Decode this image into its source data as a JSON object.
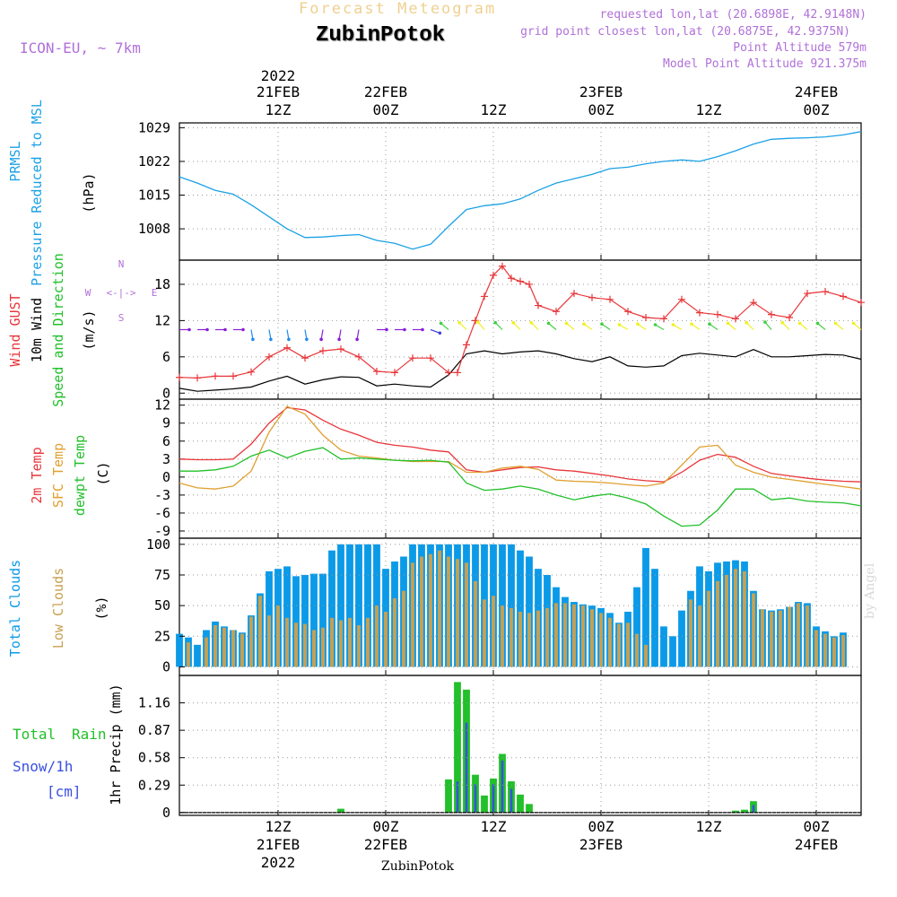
{
  "header": {
    "product": "Forecast Meteogram",
    "station": "ZubinPotok",
    "model": "ICON-EU, ~ 7km",
    "requested": "requested lon,lat (20.6898E, 42.9148N)",
    "closest": "grid point closest lon,lat (20.6875E, 42.9375N)",
    "point_alt": "Point Altitude 579m",
    "model_alt": "Model Point Altitude 921.375m",
    "footer": "ZubinPotok",
    "credit": "by Angel"
  },
  "time_axis": {
    "top_year": "2022",
    "bottom_year": "2022",
    "ticks": [
      {
        "hour": 12,
        "label": "12Z",
        "date": "21FEB"
      },
      {
        "hour": 24,
        "label": "00Z",
        "date": "22FEB"
      },
      {
        "hour": 36,
        "label": "12Z",
        "date": ""
      },
      {
        "hour": 48,
        "label": "00Z",
        "date": "23FEB"
      },
      {
        "hour": 60,
        "label": "12Z",
        "date": ""
      },
      {
        "hour": 72,
        "label": "00Z",
        "date": "24FEB"
      }
    ],
    "range_hours": [
      1,
      77
    ]
  },
  "chart_data": [
    {
      "type": "line",
      "labels": [
        "PRMSL",
        "Pressure Reduced to MSL",
        "(hPa)"
      ],
      "yticks": [
        1008,
        1015,
        1022,
        1029
      ],
      "ylim": [
        1001.5,
        1030
      ],
      "series": [
        {
          "color": "#1ba1e6",
          "x": [
            1,
            3,
            5,
            7,
            9,
            11,
            13,
            15,
            17,
            19,
            21,
            23,
            25,
            27,
            29,
            31,
            33,
            35,
            37,
            39,
            41,
            43,
            45,
            47,
            49,
            51,
            53,
            55,
            57,
            59,
            61,
            63,
            65,
            67,
            69,
            71,
            73,
            75,
            77
          ],
          "y": [
            1018.8,
            1017.5,
            1016.0,
            1015.2,
            1013.0,
            1010.5,
            1008.0,
            1006.2,
            1006.3,
            1006.6,
            1006.8,
            1005.6,
            1005.0,
            1003.8,
            1004.8,
            1008.5,
            1012.0,
            1012.8,
            1013.2,
            1014.2,
            1016.0,
            1017.5,
            1018.4,
            1019.3,
            1020.5,
            1020.8,
            1021.5,
            1022.0,
            1022.3,
            1022.0,
            1023.0,
            1024.2,
            1025.6,
            1026.6,
            1026.8,
            1026.9,
            1027.1,
            1027.5,
            1028.2
          ]
        }
      ]
    },
    {
      "type": "line",
      "labels": [
        "Wind GUST",
        "10m Wind",
        "Speed and Direction",
        "(m/s)"
      ],
      "compass": {
        "n": "N",
        "s": "S",
        "w": "W",
        "e": "E",
        "arrow": "<-|->"
      },
      "yticks": [
        0,
        6,
        12,
        18
      ],
      "ylim": [
        -1,
        22
      ],
      "gust": {
        "color": "#e8363a",
        "x": [
          1,
          3,
          5,
          7,
          9,
          11,
          13,
          15,
          17,
          19,
          21,
          23,
          25,
          27,
          29,
          31,
          32,
          33,
          34,
          35,
          36,
          37,
          38,
          39,
          40,
          41,
          43,
          45,
          47,
          49,
          51,
          53,
          55,
          57,
          59,
          61,
          63,
          65,
          67,
          69,
          71,
          73,
          75,
          77
        ],
        "y": [
          2.6,
          2.5,
          2.8,
          2.8,
          3.5,
          6.0,
          7.5,
          5.8,
          7.0,
          7.3,
          6.0,
          3.6,
          3.4,
          5.8,
          5.8,
          3.4,
          3.4,
          8.0,
          12.0,
          16.0,
          19.5,
          21.0,
          19.0,
          18.5,
          18.0,
          14.5,
          13.5,
          16.5,
          15.8,
          15.5,
          13.5,
          12.5,
          12.3,
          15.5,
          13.3,
          13.0,
          12.3,
          15.0,
          13.0,
          12.5,
          16.5,
          16.8,
          16.0,
          15.0
        ]
      },
      "wind": {
        "color": "#000000",
        "x": [
          1,
          3,
          5,
          7,
          9,
          11,
          13,
          15,
          17,
          19,
          21,
          23,
          25,
          27,
          29,
          31,
          33,
          35,
          37,
          39,
          41,
          43,
          45,
          47,
          49,
          51,
          53,
          55,
          57,
          59,
          61,
          63,
          65,
          67,
          69,
          71,
          73,
          75,
          77
        ],
        "y": [
          0.8,
          0.3,
          0.5,
          0.7,
          1.0,
          2.0,
          2.8,
          1.5,
          2.2,
          2.7,
          2.6,
          1.2,
          1.5,
          1.2,
          1.0,
          3.0,
          6.5,
          7.0,
          6.5,
          6.8,
          7.0,
          6.5,
          5.7,
          5.2,
          6.0,
          4.5,
          4.3,
          4.5,
          6.2,
          6.6,
          6.3,
          6.0,
          7.2,
          6.0,
          6.0,
          6.2,
          6.4,
          6.3,
          5.6
        ]
      },
      "barbs": {
        "colors": [
          "#8a1fd6",
          "#1e8af0",
          "#4040e0",
          "#2fd0e0",
          "#f0f020",
          "#40d040"
        ],
        "dir": [
          270,
          270,
          270,
          270,
          350,
          350,
          350,
          350,
          10,
          10,
          10,
          270,
          270,
          270,
          290,
          130,
          135,
          140,
          135,
          135,
          135,
          130,
          130,
          125,
          125,
          120,
          125,
          120,
          120,
          125,
          125,
          130,
          135,
          140,
          135,
          130,
          130,
          130,
          130
        ]
      }
    },
    {
      "type": "line",
      "labels": [
        "2m Temp",
        "SFC Temp",
        "dewpt Temp",
        "(C)"
      ],
      "yticks": [
        -9,
        -6,
        -3,
        0,
        3,
        6,
        9,
        12
      ],
      "ylim": [
        -10.2,
        13
      ],
      "series": [
        {
          "color": "#e8363a",
          "x": [
            1,
            3,
            5,
            7,
            9,
            11,
            13,
            15,
            17,
            19,
            21,
            23,
            25,
            27,
            29,
            31,
            33,
            35,
            37,
            39,
            41,
            43,
            45,
            47,
            49,
            51,
            53,
            55,
            57,
            59,
            61,
            63,
            65,
            67,
            69,
            71,
            73,
            75,
            77
          ],
          "y": [
            3.0,
            2.9,
            2.9,
            3.0,
            5.5,
            9.0,
            11.6,
            11.2,
            9.5,
            8.0,
            7.0,
            5.8,
            5.3,
            5.0,
            4.5,
            4.2,
            1.2,
            0.8,
            1.2,
            1.6,
            1.7,
            1.2,
            1.0,
            0.6,
            0.2,
            -0.3,
            -0.6,
            -0.8,
            0.8,
            2.8,
            3.8,
            3.3,
            1.8,
            0.6,
            0.2,
            -0.2,
            -0.5,
            -0.7,
            -0.8
          ]
        },
        {
          "color": "#e0a030",
          "x": [
            1,
            3,
            5,
            7,
            9,
            11,
            13,
            15,
            17,
            19,
            21,
            23,
            25,
            27,
            29,
            31,
            33,
            35,
            37,
            39,
            41,
            43,
            45,
            47,
            49,
            51,
            53,
            55,
            57,
            59,
            61,
            63,
            65,
            67,
            69,
            71,
            73,
            75,
            77
          ],
          "y": [
            -1.0,
            -1.8,
            -2.0,
            -1.5,
            1.0,
            7.5,
            11.8,
            10.5,
            7.0,
            4.5,
            3.5,
            3.2,
            2.8,
            2.6,
            2.6,
            2.6,
            0.8,
            0.8,
            1.5,
            1.8,
            1.3,
            -0.5,
            -0.7,
            -0.8,
            -1.0,
            -1.3,
            -1.5,
            -1.0,
            2.0,
            5.0,
            5.3,
            2.0,
            0.8,
            0.0,
            -0.4,
            -0.8,
            -1.2,
            -1.6,
            -2.0
          ]
        },
        {
          "color": "#22c02a",
          "x": [
            1,
            3,
            5,
            7,
            9,
            11,
            13,
            15,
            17,
            19,
            21,
            23,
            25,
            27,
            29,
            31,
            33,
            35,
            37,
            39,
            41,
            43,
            45,
            47,
            49,
            51,
            53,
            55,
            57,
            59,
            61,
            63,
            65,
            67,
            69,
            71,
            73,
            75,
            77
          ],
          "y": [
            1.0,
            1.0,
            1.2,
            1.8,
            3.5,
            4.5,
            3.2,
            4.3,
            4.9,
            3.0,
            3.2,
            3.0,
            2.8,
            2.7,
            2.8,
            2.5,
            -1.0,
            -2.2,
            -2.0,
            -1.5,
            -2.0,
            -3.0,
            -3.8,
            -3.2,
            -2.8,
            -3.5,
            -4.5,
            -6.5,
            -8.2,
            -8.0,
            -5.5,
            -2.0,
            -2.0,
            -3.8,
            -3.5,
            -4.0,
            -4.2,
            -4.3,
            -4.8
          ]
        }
      ]
    },
    {
      "type": "bar",
      "labels": [
        "Total Clouds",
        "Low Clouds",
        "(%)"
      ],
      "yticks": [
        0,
        25,
        50,
        75,
        100
      ],
      "ylim": [
        -7,
        105
      ],
      "x_start": 1,
      "x_step": 1,
      "total": [
        27,
        24,
        18,
        30,
        37,
        33,
        30,
        28,
        42,
        60,
        78,
        80,
        82,
        74,
        75,
        76,
        76,
        95,
        100,
        100,
        100,
        100,
        100,
        80,
        86,
        90,
        100,
        100,
        100,
        100,
        100,
        100,
        100,
        100,
        100,
        100,
        100,
        100,
        95,
        90,
        80,
        75,
        65,
        57,
        53,
        51,
        50,
        48,
        44,
        36,
        45,
        65,
        97,
        80,
        33,
        25,
        46,
        62,
        82,
        78,
        85,
        86,
        87,
        86,
        62,
        47,
        46,
        47,
        49,
        53,
        52,
        33,
        29,
        25,
        28
      ],
      "total_color": "#0a9ae8",
      "low": [
        0,
        20,
        0,
        24,
        34,
        32,
        30,
        27,
        41,
        58,
        42,
        50,
        40,
        36,
        35,
        30,
        32,
        40,
        38,
        40,
        34,
        40,
        50,
        45,
        56,
        62,
        85,
        90,
        92,
        95,
        90,
        88,
        85,
        70,
        55,
        58,
        50,
        48,
        45,
        44,
        46,
        48,
        52,
        52,
        51,
        50,
        47,
        44,
        40,
        35,
        36,
        27,
        18,
        0,
        0,
        0,
        0,
        55,
        50,
        62,
        70,
        75,
        80,
        78,
        60,
        47,
        45,
        46,
        49,
        52,
        50,
        30,
        27,
        24,
        26
      ],
      "low_color": "#c8a050"
    },
    {
      "type": "bar",
      "labels": [
        "Total",
        "Rain",
        "Snow/1h",
        "[cm]",
        "1hr Precip (mm)"
      ],
      "yticks": [
        0,
        0.29,
        0.58,
        0.87,
        1.16
      ],
      "tick_labels": [
        "0",
        "0.29",
        "0.58",
        "0.87",
        "1.16"
      ],
      "ylim": [
        -0.03,
        1.45
      ],
      "x_start": 1,
      "x_step": 1,
      "total": [
        0,
        0,
        0,
        0,
        0,
        0,
        0,
        0,
        0,
        0,
        0,
        0,
        0,
        0,
        0,
        0,
        0,
        0,
        0.04,
        0,
        0,
        0,
        0,
        0,
        0,
        0,
        0,
        0,
        0,
        0,
        0.35,
        1.38,
        1.3,
        0.4,
        0.18,
        0.36,
        0.62,
        0.33,
        0.19,
        0.09,
        0,
        0,
        0,
        0,
        0,
        0,
        0,
        0,
        0,
        0,
        0,
        0,
        0,
        0,
        0,
        0,
        0,
        0,
        0,
        0,
        0,
        0,
        0.02,
        0.03,
        0.12,
        0,
        0,
        0,
        0,
        0,
        0,
        0,
        0,
        0,
        0,
        0,
        0
      ],
      "total_color": "#22c02a",
      "snow": [
        0,
        0,
        0,
        0,
        0,
        0,
        0,
        0,
        0,
        0,
        0,
        0,
        0,
        0,
        0,
        0,
        0,
        0,
        0,
        0,
        0,
        0,
        0,
        0,
        0,
        0,
        0,
        0,
        0,
        0,
        0,
        0.33,
        0.95,
        0.3,
        0,
        0.3,
        0.55,
        0.25,
        0,
        0,
        0,
        0,
        0,
        0,
        0,
        0,
        0,
        0,
        0,
        0,
        0,
        0,
        0,
        0,
        0,
        0,
        0,
        0,
        0,
        0,
        0,
        0,
        0,
        0,
        0.08,
        0,
        0,
        0,
        0,
        0,
        0,
        0,
        0,
        0,
        0,
        0,
        0
      ],
      "snow_color": "#3a50e0"
    }
  ]
}
